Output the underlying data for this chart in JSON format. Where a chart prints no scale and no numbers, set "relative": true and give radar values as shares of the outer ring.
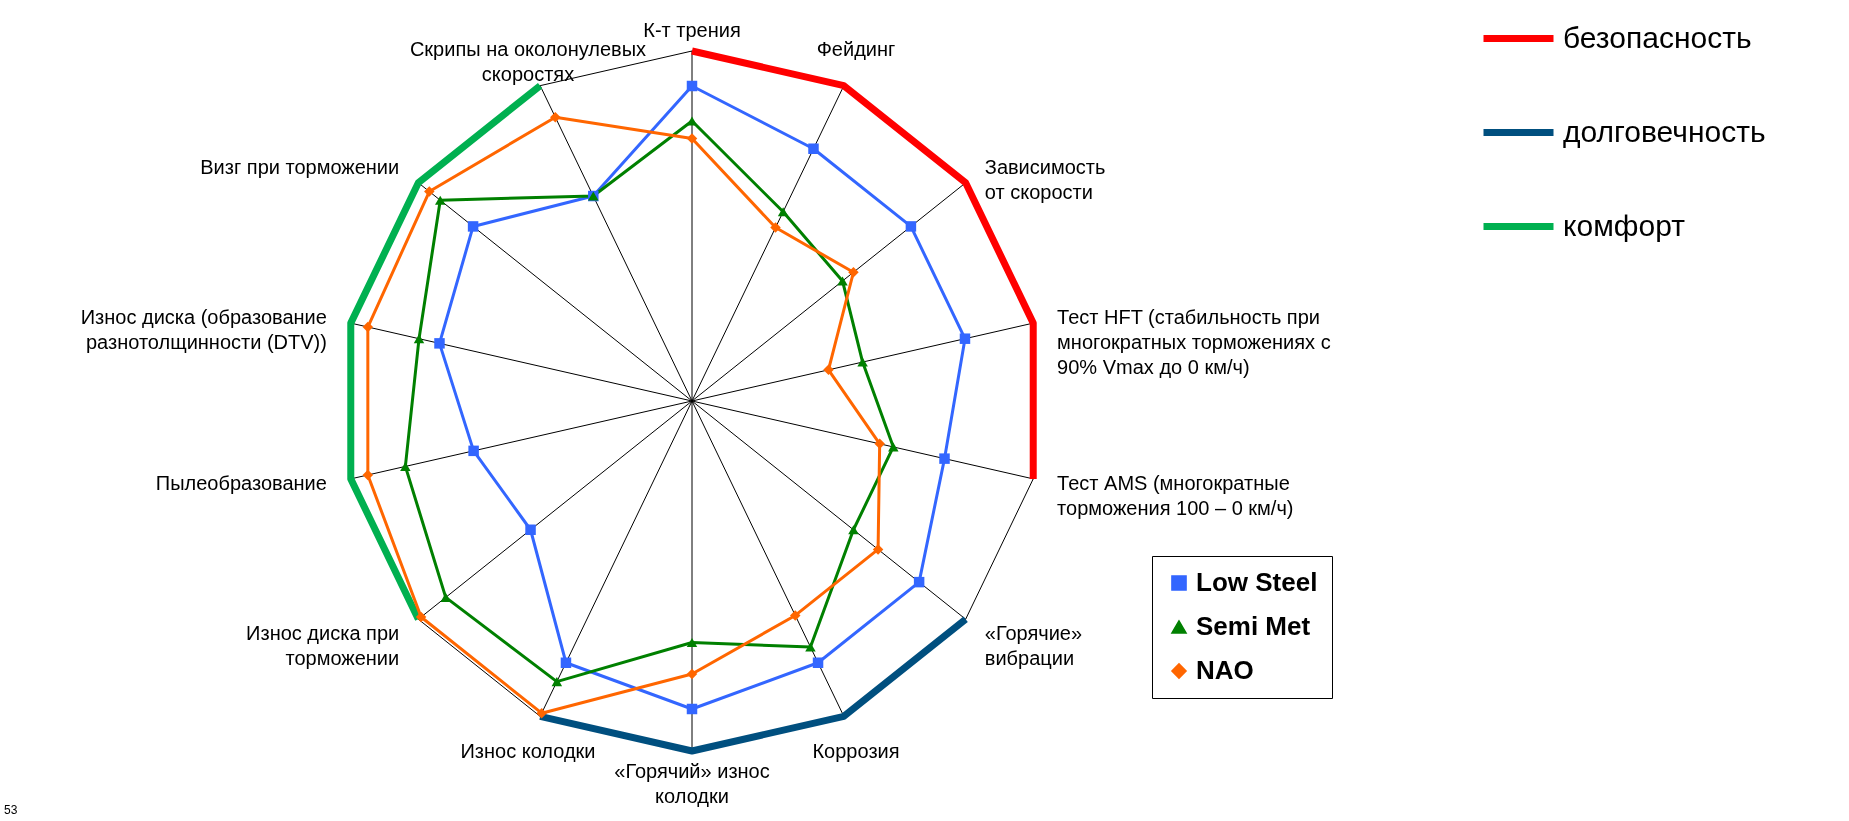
{
  "chart_data": {
    "type": "radar",
    "relative": true,
    "legend": "right",
    "categories": [
      "К-т трения",
      "Фейдинг",
      "Зависимость\nот скорости",
      "Тест HFT (стабильность при\nмногократных торможениях с\n90% Vmax до 0 км/ч)",
      "Тест AMS (многократные\nторможения 100 – 0 км/ч)",
      "«Горячие»\nвибрации",
      "Коррозия",
      "«Горячий» износ\nколодки",
      "Износ колодки",
      "Износ диска при\nторможении",
      "Пылеобразование",
      "Износ диска (образование\nразнотолщинности (DTV))",
      "Визг при торможении",
      "Скрипы на околонулевых\nскоростях"
    ],
    "series": [
      {
        "name": "Low Steel",
        "color": "#3366ff",
        "marker": "square",
        "values": [
          0.9,
          0.8,
          0.8,
          0.8,
          0.74,
          0.83,
          0.83,
          0.88,
          0.83,
          0.59,
          0.64,
          0.74,
          0.8,
          0.65
        ]
      },
      {
        "name": "Semi Met",
        "color": "#008000",
        "marker": "triangle",
        "values": [
          0.8,
          0.6,
          0.55,
          0.5,
          0.59,
          0.59,
          0.78,
          0.69,
          0.89,
          0.9,
          0.84,
          0.8,
          0.92,
          0.65
        ]
      },
      {
        "name": "NAO",
        "color": "#ff6600",
        "marker": "diamond",
        "values": [
          0.75,
          0.55,
          0.59,
          0.4,
          0.55,
          0.68,
          0.68,
          0.78,
          0.99,
          0.99,
          0.95,
          0.95,
          0.96,
          0.9
        ]
      },
      {
        "name": "безопасность",
        "color": "#ff0000",
        "marker": "none",
        "values": [
          1,
          1,
          1,
          1,
          1,
          null,
          null,
          null,
          null,
          null,
          null,
          null,
          null,
          null
        ]
      },
      {
        "name": "долговечность",
        "color": "#004f7f",
        "marker": "none",
        "values": [
          null,
          null,
          null,
          null,
          null,
          1,
          1,
          1,
          1,
          null,
          null,
          null,
          null,
          null
        ]
      },
      {
        "name": "комфорт",
        "color": "#00b050",
        "marker": "none",
        "values": [
          null,
          null,
          null,
          null,
          null,
          null,
          null,
          null,
          null,
          1,
          1,
          1,
          1,
          1
        ]
      }
    ],
    "annotations": [
      "53"
    ]
  }
}
